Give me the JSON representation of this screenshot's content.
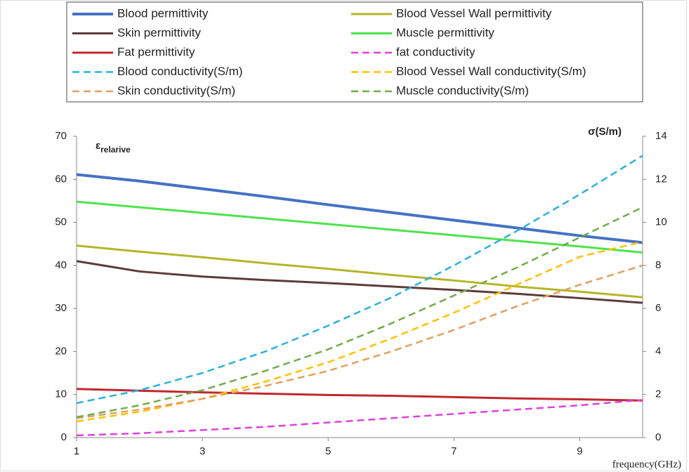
{
  "chart_data": {
    "type": "line",
    "x_label": "frequency(GHz)",
    "y_label": "ε",
    "y_label_sub": "relarive",
    "y2_label": "σ(S/m)",
    "x": [
      1,
      2,
      3,
      4,
      5,
      6,
      7,
      8,
      9,
      10
    ],
    "xlim": [
      1,
      10
    ],
    "xticks": [
      1,
      3,
      5,
      7,
      9
    ],
    "ylim": [
      0,
      70
    ],
    "yticks": [
      0,
      10,
      20,
      30,
      40,
      50,
      60,
      70
    ],
    "y2lim": [
      0,
      14
    ],
    "y2ticks": [
      0,
      2,
      4,
      6,
      8,
      10,
      12,
      14
    ],
    "legend": "top",
    "series": [
      {
        "name": "Blood permittivity",
        "color": "#4472c4",
        "width": 4,
        "values": [
          61.1,
          59.6,
          57.8,
          56.0,
          54.1,
          52.3,
          50.5,
          48.7,
          46.9,
          45.3
        ]
      },
      {
        "name": "Blood Vessel Wall permittivity",
        "color": "#b5b52a",
        "width": 3,
        "values": [
          44.6,
          43.2,
          41.9,
          40.5,
          39.2,
          37.8,
          36.5,
          35.1,
          33.9,
          32.6
        ]
      },
      {
        "name": "Skin permittivity",
        "color": "#5e3b3b",
        "width": 3,
        "values": [
          41.0,
          38.6,
          37.4,
          36.6,
          35.9,
          35.1,
          34.3,
          33.4,
          32.4,
          31.3
        ]
      },
      {
        "name": "Muscle permittivity",
        "color": "#4ce34c",
        "width": 3,
        "values": [
          54.8,
          53.5,
          52.2,
          50.9,
          49.6,
          48.3,
          47.0,
          45.7,
          44.4,
          43.0
        ]
      },
      {
        "name": "Fat permittivity",
        "color": "#c0282c",
        "width": 3,
        "values": [
          11.3,
          10.9,
          10.5,
          10.2,
          9.9,
          9.7,
          9.4,
          9.1,
          8.9,
          8.6
        ]
      },
      {
        "name": "fat conductivity",
        "color": "#e040e0",
        "width": 2.5,
        "dash": true,
        "axis": "y2",
        "values": [
          0.1,
          0.2,
          0.35,
          0.5,
          0.7,
          0.9,
          1.1,
          1.3,
          1.5,
          1.75
        ]
      },
      {
        "name": "Blood conductivity(S/m)",
        "color": "#2ab0e0",
        "width": 2.5,
        "dash": true,
        "axis": "y2",
        "values": [
          1.6,
          2.2,
          3.0,
          4.0,
          5.2,
          6.5,
          8.0,
          9.6,
          11.3,
          13.1
        ]
      },
      {
        "name": "Blood Vessel Wall conductivity(S/m)",
        "color": "#ffc000",
        "width": 2.5,
        "dash": true,
        "axis": "y2",
        "values": [
          0.75,
          1.2,
          1.8,
          2.6,
          3.5,
          4.6,
          5.8,
          7.1,
          8.4,
          9.1
        ]
      },
      {
        "name": "Skin conductivity(S/m)",
        "color": "#e0a060",
        "width": 2.5,
        "dash": true,
        "axis": "y2",
        "values": [
          0.9,
          1.3,
          1.8,
          2.4,
          3.1,
          4.0,
          5.0,
          6.1,
          7.1,
          8.0
        ]
      },
      {
        "name": "Muscle conductivity(S/m)",
        "color": "#70ad47",
        "width": 2.5,
        "dash": true,
        "axis": "y2",
        "values": [
          0.95,
          1.5,
          2.2,
          3.1,
          4.1,
          5.3,
          6.6,
          7.9,
          9.3,
          10.7
        ]
      }
    ]
  }
}
